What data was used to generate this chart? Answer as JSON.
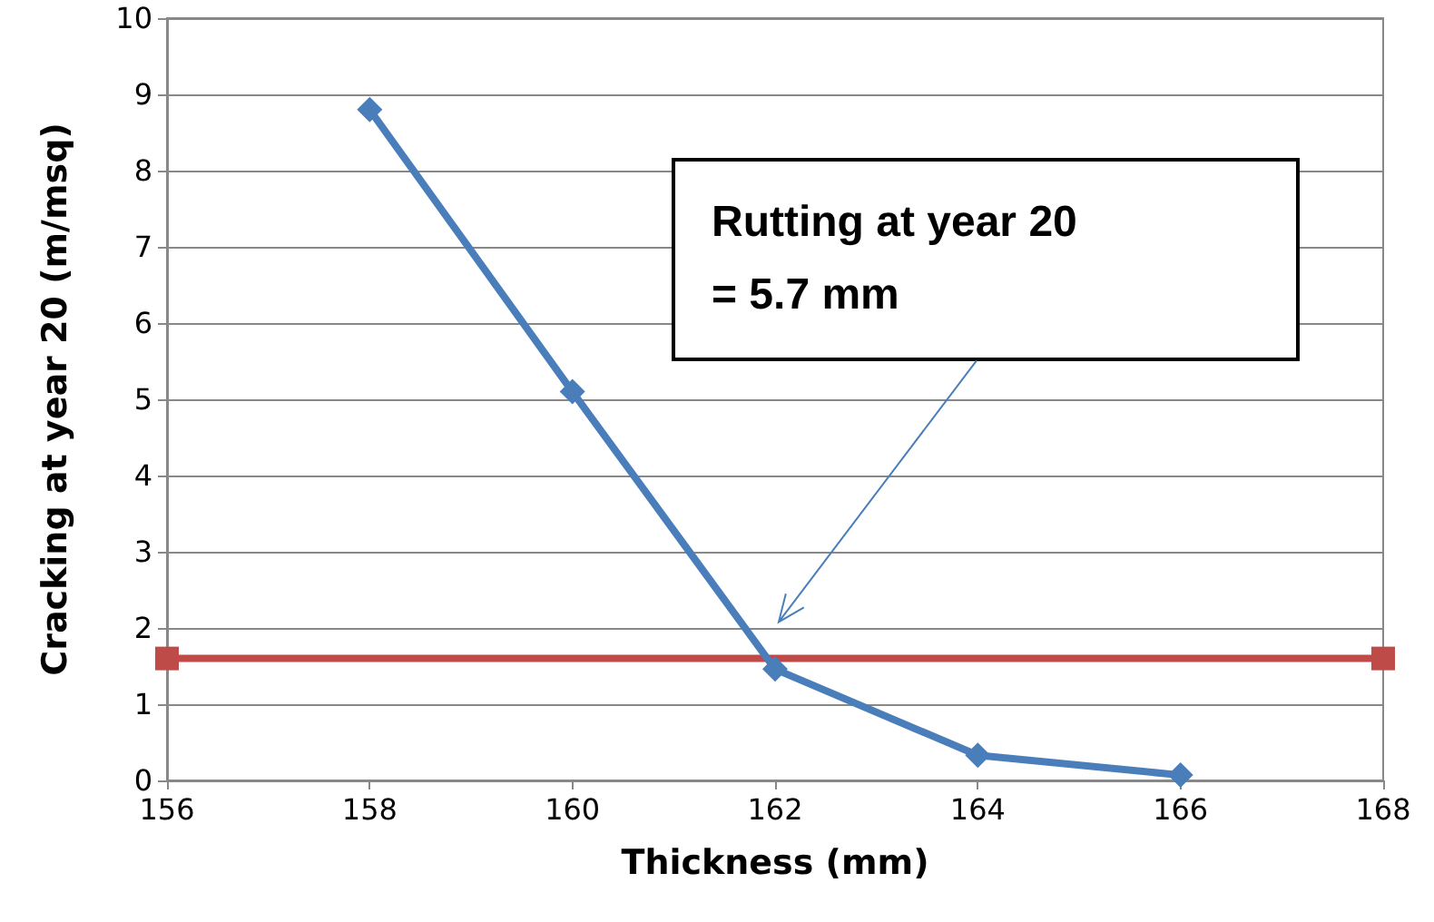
{
  "chart_data": {
    "type": "line",
    "xlabel": "Thickness (mm)",
    "ylabel": "Cracking at year 20 (m/msq)",
    "xlim": [
      156,
      168
    ],
    "xticks": [
      156,
      158,
      160,
      162,
      164,
      166,
      168
    ],
    "ylim": [
      0,
      10
    ],
    "yticks": [
      0,
      1,
      2,
      3,
      4,
      5,
      6,
      7,
      8,
      9,
      10
    ],
    "grid": "y",
    "series": [
      {
        "color": "#4a7ebb",
        "marker": "diamond",
        "x": [
          158,
          160,
          162,
          164,
          166
        ],
        "values": [
          8.8,
          5.1,
          1.46,
          0.33,
          0.07
        ]
      },
      {
        "color": "#be4b48",
        "marker": "square",
        "x": [
          156,
          168
        ],
        "values": [
          1.6,
          1.6
        ]
      }
    ],
    "annotations": [
      "Rutting at year 20\n= 5.7 mm"
    ]
  }
}
